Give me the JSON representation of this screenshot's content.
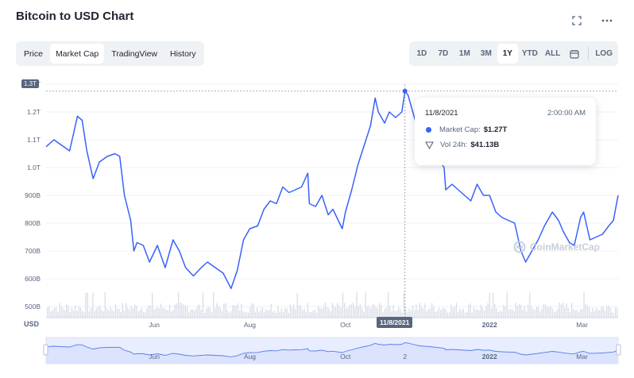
{
  "header": {
    "title": "Bitcoin to USD Chart"
  },
  "icons": {
    "expand": "expand-icon",
    "more": "more-icon",
    "calendar": "calendar-icon",
    "logo": "coinmarketcap-logo-icon"
  },
  "tabs": [
    {
      "label": "Price",
      "active": false
    },
    {
      "label": "Market Cap",
      "active": true
    },
    {
      "label": "TradingView",
      "active": false
    },
    {
      "label": "History",
      "active": false
    }
  ],
  "ranges": [
    {
      "label": "1D",
      "active": false
    },
    {
      "label": "7D",
      "active": false
    },
    {
      "label": "1M",
      "active": false
    },
    {
      "label": "3M",
      "active": false
    },
    {
      "label": "1Y",
      "active": true
    },
    {
      "label": "YTD",
      "active": false
    },
    {
      "label": "ALL",
      "active": false
    }
  ],
  "log_label": "LOG",
  "tooltip": {
    "date": "11/8/2021",
    "time": "2:00:00 AM",
    "market_cap_label": "Market Cap:",
    "market_cap_value": "$1.27T",
    "vol_label": "Vol 24h:",
    "vol_value": "$41.13B"
  },
  "crosshair": {
    "y_label": "1.3T",
    "x_label": "11/8/2021"
  },
  "currency_label": "USD",
  "watermark": "CoinMarketCap",
  "colors": {
    "line": "#3861fb",
    "area": "#e8edff",
    "volume": "#d8dde6",
    "text": "#58667e"
  },
  "chart_data": {
    "type": "line",
    "title": "Bitcoin to USD Chart",
    "ylabel": "USD",
    "yticks": [
      {
        "label": "500B",
        "value": 500
      },
      {
        "label": "600B",
        "value": 600
      },
      {
        "label": "700B",
        "value": 700
      },
      {
        "label": "800B",
        "value": 800
      },
      {
        "label": "900B",
        "value": 900
      },
      {
        "label": "1.0T",
        "value": 1000
      },
      {
        "label": "1.1T",
        "value": 1100
      },
      {
        "label": "1.2T",
        "value": 1200
      },
      {
        "label": "1.3T",
        "value": 1300
      }
    ],
    "ylim": [
      460,
      1300
    ],
    "xlim": [
      "2021-03-24",
      "2022-03-24"
    ],
    "xticks": [
      {
        "label": "Jun",
        "date": "2021-06-01"
      },
      {
        "label": "Aug",
        "date": "2021-08-01"
      },
      {
        "label": "Oct",
        "date": "2021-10-01"
      },
      {
        "label": "2022",
        "date": "2022-01-01"
      },
      {
        "label": "Mar",
        "date": "2022-03-01"
      }
    ],
    "navigator_ticks": [
      "Jun",
      "Aug",
      "Oct",
      "2",
      "2022",
      "Mar"
    ],
    "grid": true,
    "series": [
      {
        "values": [
          [
            "2021-03-24",
            1075
          ],
          [
            "2021-03-29",
            1100
          ],
          [
            "2021-04-03",
            1080
          ],
          [
            "2021-04-08",
            1060
          ],
          [
            "2021-04-13",
            1185
          ],
          [
            "2021-04-16",
            1170
          ],
          [
            "2021-04-19",
            1060
          ],
          [
            "2021-04-23",
            960
          ],
          [
            "2021-04-27",
            1020
          ],
          [
            "2021-05-02",
            1040
          ],
          [
            "2021-05-07",
            1050
          ],
          [
            "2021-05-10",
            1040
          ],
          [
            "2021-05-13",
            900
          ],
          [
            "2021-05-17",
            810
          ],
          [
            "2021-05-19",
            700
          ],
          [
            "2021-05-21",
            730
          ],
          [
            "2021-05-25",
            720
          ],
          [
            "2021-05-29",
            660
          ],
          [
            "2021-06-03",
            720
          ],
          [
            "2021-06-08",
            640
          ],
          [
            "2021-06-13",
            740
          ],
          [
            "2021-06-17",
            700
          ],
          [
            "2021-06-21",
            640
          ],
          [
            "2021-06-26",
            610
          ],
          [
            "2021-07-01",
            640
          ],
          [
            "2021-07-05",
            660
          ],
          [
            "2021-07-10",
            640
          ],
          [
            "2021-07-15",
            620
          ],
          [
            "2021-07-20",
            565
          ],
          [
            "2021-07-24",
            630
          ],
          [
            "2021-07-28",
            740
          ],
          [
            "2021-08-01",
            780
          ],
          [
            "2021-08-06",
            790
          ],
          [
            "2021-08-10",
            850
          ],
          [
            "2021-08-14",
            880
          ],
          [
            "2021-08-18",
            870
          ],
          [
            "2021-08-22",
            930
          ],
          [
            "2021-08-26",
            910
          ],
          [
            "2021-08-30",
            920
          ],
          [
            "2021-09-03",
            930
          ],
          [
            "2021-09-07",
            980
          ],
          [
            "2021-09-08",
            870
          ],
          [
            "2021-09-12",
            860
          ],
          [
            "2021-09-16",
            900
          ],
          [
            "2021-09-20",
            830
          ],
          [
            "2021-09-23",
            850
          ],
          [
            "2021-09-29",
            780
          ],
          [
            "2021-10-01",
            840
          ],
          [
            "2021-10-05",
            920
          ],
          [
            "2021-10-09",
            1010
          ],
          [
            "2021-10-13",
            1080
          ],
          [
            "2021-10-17",
            1150
          ],
          [
            "2021-10-20",
            1250
          ],
          [
            "2021-10-22",
            1200
          ],
          [
            "2021-10-26",
            1160
          ],
          [
            "2021-10-29",
            1200
          ],
          [
            "2021-11-02",
            1180
          ],
          [
            "2021-11-06",
            1200
          ],
          [
            "2021-11-08",
            1275
          ],
          [
            "2021-11-10",
            1260
          ],
          [
            "2021-11-12",
            1220
          ],
          [
            "2021-11-16",
            1140
          ],
          [
            "2021-11-20",
            1100
          ],
          [
            "2021-11-24",
            1080
          ],
          [
            "2021-11-28",
            1040
          ],
          [
            "2021-12-03",
            1000
          ],
          [
            "2021-12-04",
            920
          ],
          [
            "2021-12-08",
            940
          ],
          [
            "2021-12-12",
            920
          ],
          [
            "2021-12-16",
            900
          ],
          [
            "2021-12-20",
            880
          ],
          [
            "2021-12-24",
            940
          ],
          [
            "2021-12-28",
            900
          ],
          [
            "2022-01-01",
            900
          ],
          [
            "2022-01-05",
            840
          ],
          [
            "2022-01-09",
            820
          ],
          [
            "2022-01-13",
            810
          ],
          [
            "2022-01-17",
            800
          ],
          [
            "2022-01-21",
            700
          ],
          [
            "2022-01-24",
            660
          ],
          [
            "2022-01-28",
            700
          ],
          [
            "2022-02-01",
            740
          ],
          [
            "2022-02-05",
            790
          ],
          [
            "2022-02-10",
            840
          ],
          [
            "2022-02-14",
            810
          ],
          [
            "2022-02-17",
            770
          ],
          [
            "2022-02-21",
            730
          ],
          [
            "2022-02-24",
            720
          ],
          [
            "2022-02-28",
            820
          ],
          [
            "2022-03-02",
            840
          ],
          [
            "2022-03-06",
            740
          ],
          [
            "2022-03-10",
            750
          ],
          [
            "2022-03-14",
            760
          ],
          [
            "2022-03-18",
            790
          ],
          [
            "2022-03-21",
            810
          ],
          [
            "2022-03-24",
            900
          ]
        ]
      }
    ]
  }
}
